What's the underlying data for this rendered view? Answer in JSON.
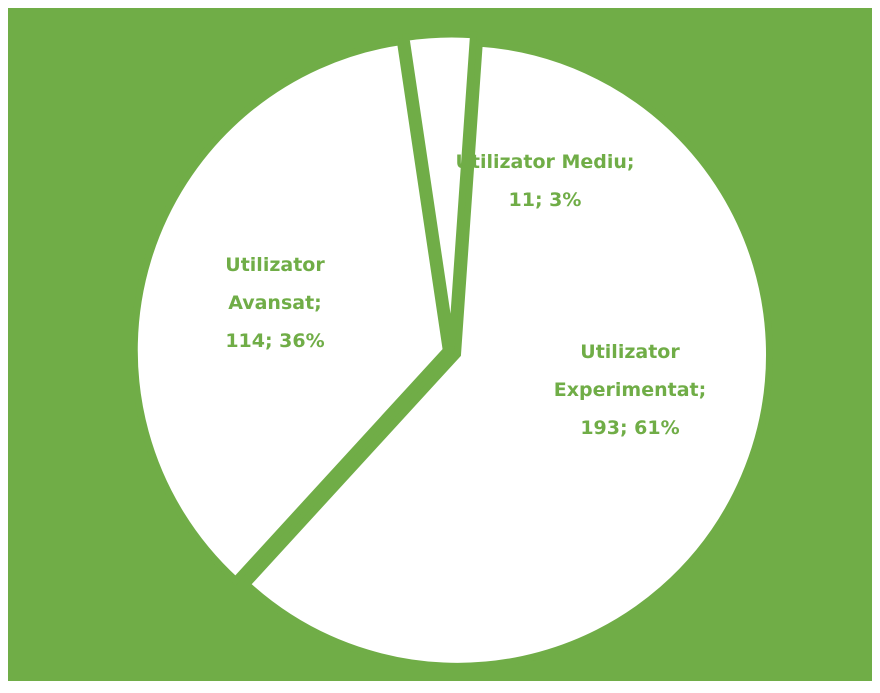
{
  "chart_data": {
    "type": "pie",
    "values": [
      193,
      114,
      11
    ],
    "value_labels": [
      [
        "Utilizator",
        "Experimentat;",
        "193; 61%"
      ],
      [
        "Utilizator",
        "Avansat;",
        "114; 36%"
      ],
      [
        "Utilizator Mediu;",
        "11; 3%"
      ]
    ],
    "slice_color": "#ffffff",
    "background": "#70ad47",
    "label_color": "#70ad47"
  }
}
